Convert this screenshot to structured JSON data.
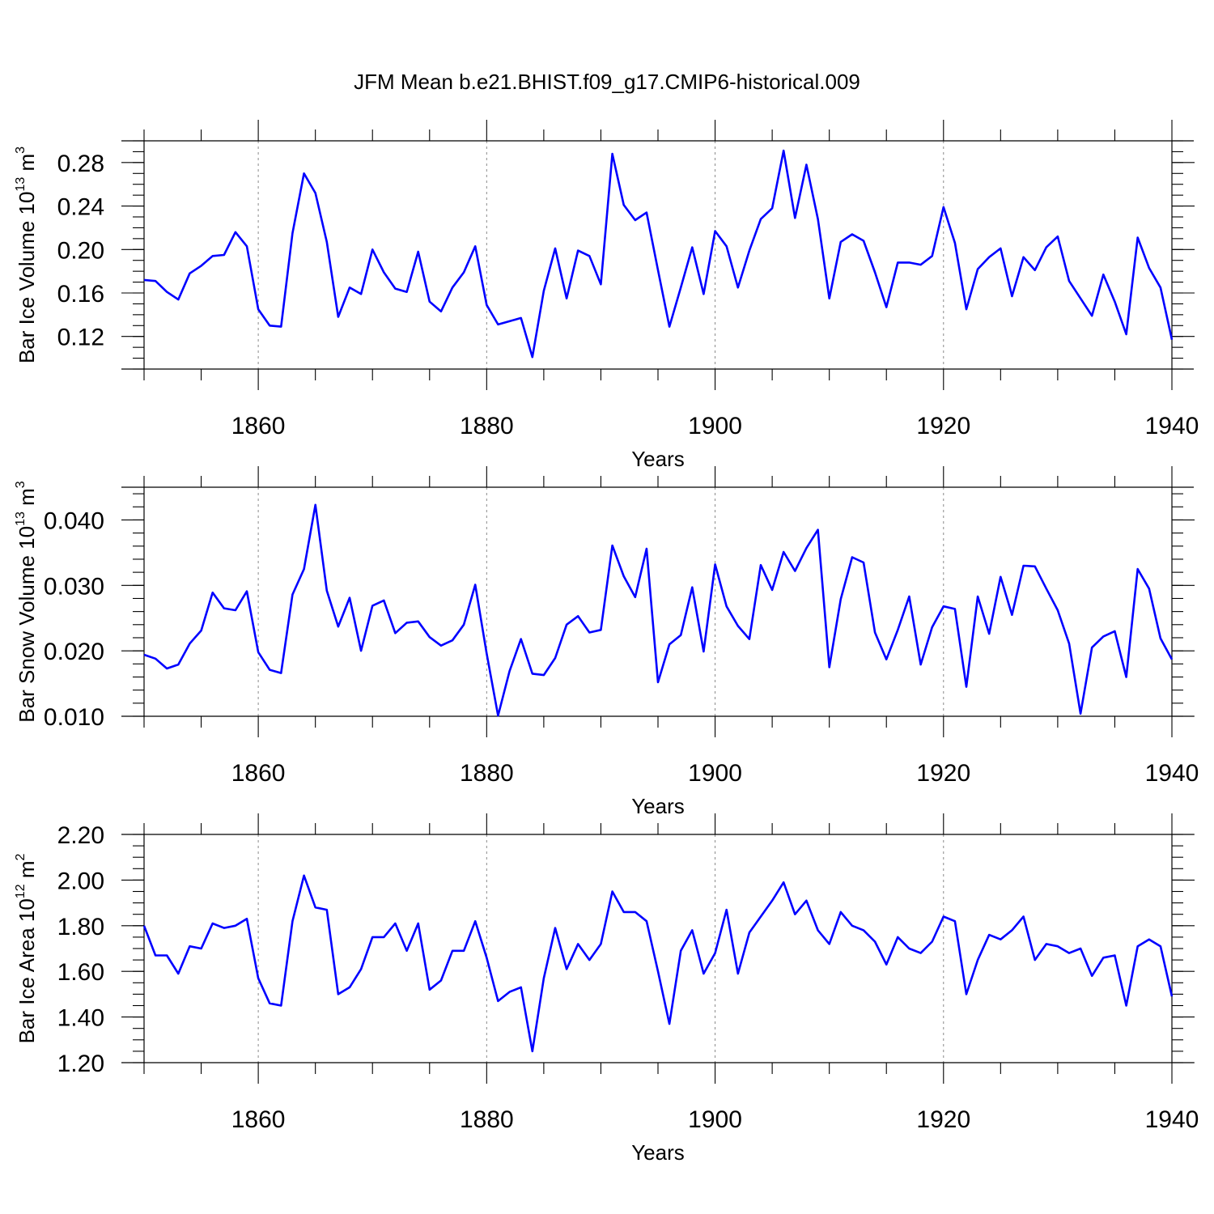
{
  "figure_title": "JFM Mean b.e21.BHIST.f09_g17.CMIP6-historical.009",
  "chart_data": [
    {
      "type": "line",
      "id": "ice-volume",
      "ylabel": "Bar Ice Volume 10",
      "ylabel_exp": "13",
      "ylabel_unit": " m",
      "ylabel_unit_exp": "3",
      "xlabel": "Years",
      "xlim": [
        1850,
        1940
      ],
      "ylim": [
        0.09,
        0.3
      ],
      "yticks": [
        0.12,
        0.16,
        0.2,
        0.24,
        0.28
      ],
      "yticklabels": [
        "0.12",
        "0.16",
        "0.20",
        "0.24",
        "0.28"
      ],
      "yminor_step": 0.01,
      "xticks": [
        1860,
        1880,
        1900,
        1920,
        1940
      ],
      "xticklabels": [
        "1860",
        "1880",
        "1900",
        "1920",
        "1940"
      ],
      "grid_x": [
        1860,
        1880,
        1900,
        1920
      ],
      "x_start": 1850,
      "values": [
        0.172,
        0.171,
        0.161,
        0.154,
        0.178,
        0.185,
        0.194,
        0.195,
        0.216,
        0.203,
        0.145,
        0.13,
        0.129,
        0.215,
        0.27,
        0.252,
        0.207,
        0.138,
        0.165,
        0.159,
        0.2,
        0.179,
        0.164,
        0.161,
        0.198,
        0.152,
        0.143,
        0.165,
        0.179,
        0.203,
        0.149,
        0.131,
        0.134,
        0.137,
        0.101,
        0.162,
        0.201,
        0.155,
        0.199,
        0.194,
        0.168,
        0.288,
        0.241,
        0.227,
        0.234,
        0.181,
        0.129,
        0.165,
        0.202,
        0.159,
        0.217,
        0.203,
        0.165,
        0.199,
        0.228,
        0.238,
        0.291,
        0.229,
        0.278,
        0.228,
        0.155,
        0.207,
        0.214,
        0.208,
        0.179,
        0.147,
        0.188,
        0.188,
        0.186,
        0.194,
        0.239,
        0.206,
        0.145,
        0.182,
        0.193,
        0.201,
        0.157,
        0.193,
        0.181,
        0.202,
        0.212,
        0.171,
        0.155,
        0.139,
        0.177,
        0.152,
        0.122,
        0.211,
        0.183,
        0.165,
        0.117
      ]
    },
    {
      "type": "line",
      "id": "snow-volume",
      "ylabel": "Bar Snow Volume 10",
      "ylabel_exp": "13",
      "ylabel_unit": " m",
      "ylabel_unit_exp": "3",
      "xlabel": "Years",
      "xlim": [
        1850,
        1940
      ],
      "ylim": [
        0.01,
        0.045
      ],
      "yticks": [
        0.01,
        0.02,
        0.03,
        0.04
      ],
      "yticklabels": [
        "0.010",
        "0.020",
        "0.030",
        "0.040"
      ],
      "yminor_step": 0.002,
      "xticks": [
        1860,
        1880,
        1900,
        1920,
        1940
      ],
      "xticklabels": [
        "1860",
        "1880",
        "1900",
        "1920",
        "1940"
      ],
      "grid_x": [
        1860,
        1880,
        1900,
        1920
      ],
      "x_start": 1850,
      "values": [
        0.0194,
        0.0188,
        0.0173,
        0.0179,
        0.0211,
        0.0231,
        0.0289,
        0.0265,
        0.0262,
        0.0291,
        0.0198,
        0.0171,
        0.0166,
        0.0286,
        0.0325,
        0.0423,
        0.0292,
        0.0237,
        0.0281,
        0.02,
        0.0269,
        0.0277,
        0.0227,
        0.0243,
        0.0245,
        0.0221,
        0.0208,
        0.0216,
        0.024,
        0.0301,
        0.0196,
        0.0101,
        0.0169,
        0.0218,
        0.0165,
        0.0163,
        0.0189,
        0.024,
        0.0253,
        0.0228,
        0.0232,
        0.0361,
        0.0314,
        0.0282,
        0.0356,
        0.0152,
        0.021,
        0.0224,
        0.0297,
        0.0199,
        0.0332,
        0.0268,
        0.0238,
        0.0218,
        0.0331,
        0.0293,
        0.0351,
        0.0322,
        0.0357,
        0.0385,
        0.0175,
        0.0279,
        0.0343,
        0.0335,
        0.0228,
        0.0187,
        0.0232,
        0.0283,
        0.0179,
        0.0236,
        0.0268,
        0.0264,
        0.0145,
        0.0283,
        0.0226,
        0.0313,
        0.0255,
        0.033,
        0.0329,
        0.0295,
        0.0262,
        0.0211,
        0.0104,
        0.0205,
        0.0222,
        0.023,
        0.016,
        0.0325,
        0.0295,
        0.0219,
        0.0187
      ]
    },
    {
      "type": "line",
      "id": "ice-area",
      "ylabel": "Bar Ice Area 10",
      "ylabel_exp": "12",
      "ylabel_unit": " m",
      "ylabel_unit_exp": "2",
      "xlabel": "Years",
      "xlim": [
        1850,
        1940
      ],
      "ylim": [
        1.2,
        2.2
      ],
      "yticks": [
        1.2,
        1.4,
        1.6,
        1.8,
        2.0,
        2.2
      ],
      "yticklabels": [
        "1.20",
        "1.40",
        "1.60",
        "1.80",
        "2.00",
        "2.20"
      ],
      "yminor_step": 0.05,
      "xticks": [
        1860,
        1880,
        1900,
        1920,
        1940
      ],
      "xticklabels": [
        "1860",
        "1880",
        "1900",
        "1920",
        "1940"
      ],
      "grid_x": [
        1860,
        1880,
        1900,
        1920
      ],
      "x_start": 1850,
      "values": [
        1.8,
        1.67,
        1.67,
        1.59,
        1.71,
        1.7,
        1.81,
        1.79,
        1.8,
        1.83,
        1.57,
        1.46,
        1.45,
        1.82,
        2.02,
        1.88,
        1.87,
        1.5,
        1.53,
        1.61,
        1.75,
        1.75,
        1.81,
        1.69,
        1.81,
        1.52,
        1.56,
        1.69,
        1.69,
        1.82,
        1.66,
        1.47,
        1.51,
        1.53,
        1.25,
        1.57,
        1.79,
        1.61,
        1.72,
        1.65,
        1.72,
        1.95,
        1.86,
        1.86,
        1.82,
        1.6,
        1.37,
        1.69,
        1.78,
        1.59,
        1.68,
        1.87,
        1.59,
        1.77,
        1.84,
        1.91,
        1.99,
        1.85,
        1.91,
        1.78,
        1.72,
        1.86,
        1.8,
        1.78,
        1.73,
        1.63,
        1.75,
        1.7,
        1.68,
        1.73,
        1.84,
        1.82,
        1.5,
        1.65,
        1.76,
        1.74,
        1.78,
        1.84,
        1.65,
        1.72,
        1.71,
        1.68,
        1.7,
        1.58,
        1.66,
        1.67,
        1.45,
        1.71,
        1.74,
        1.71,
        1.49
      ]
    }
  ]
}
